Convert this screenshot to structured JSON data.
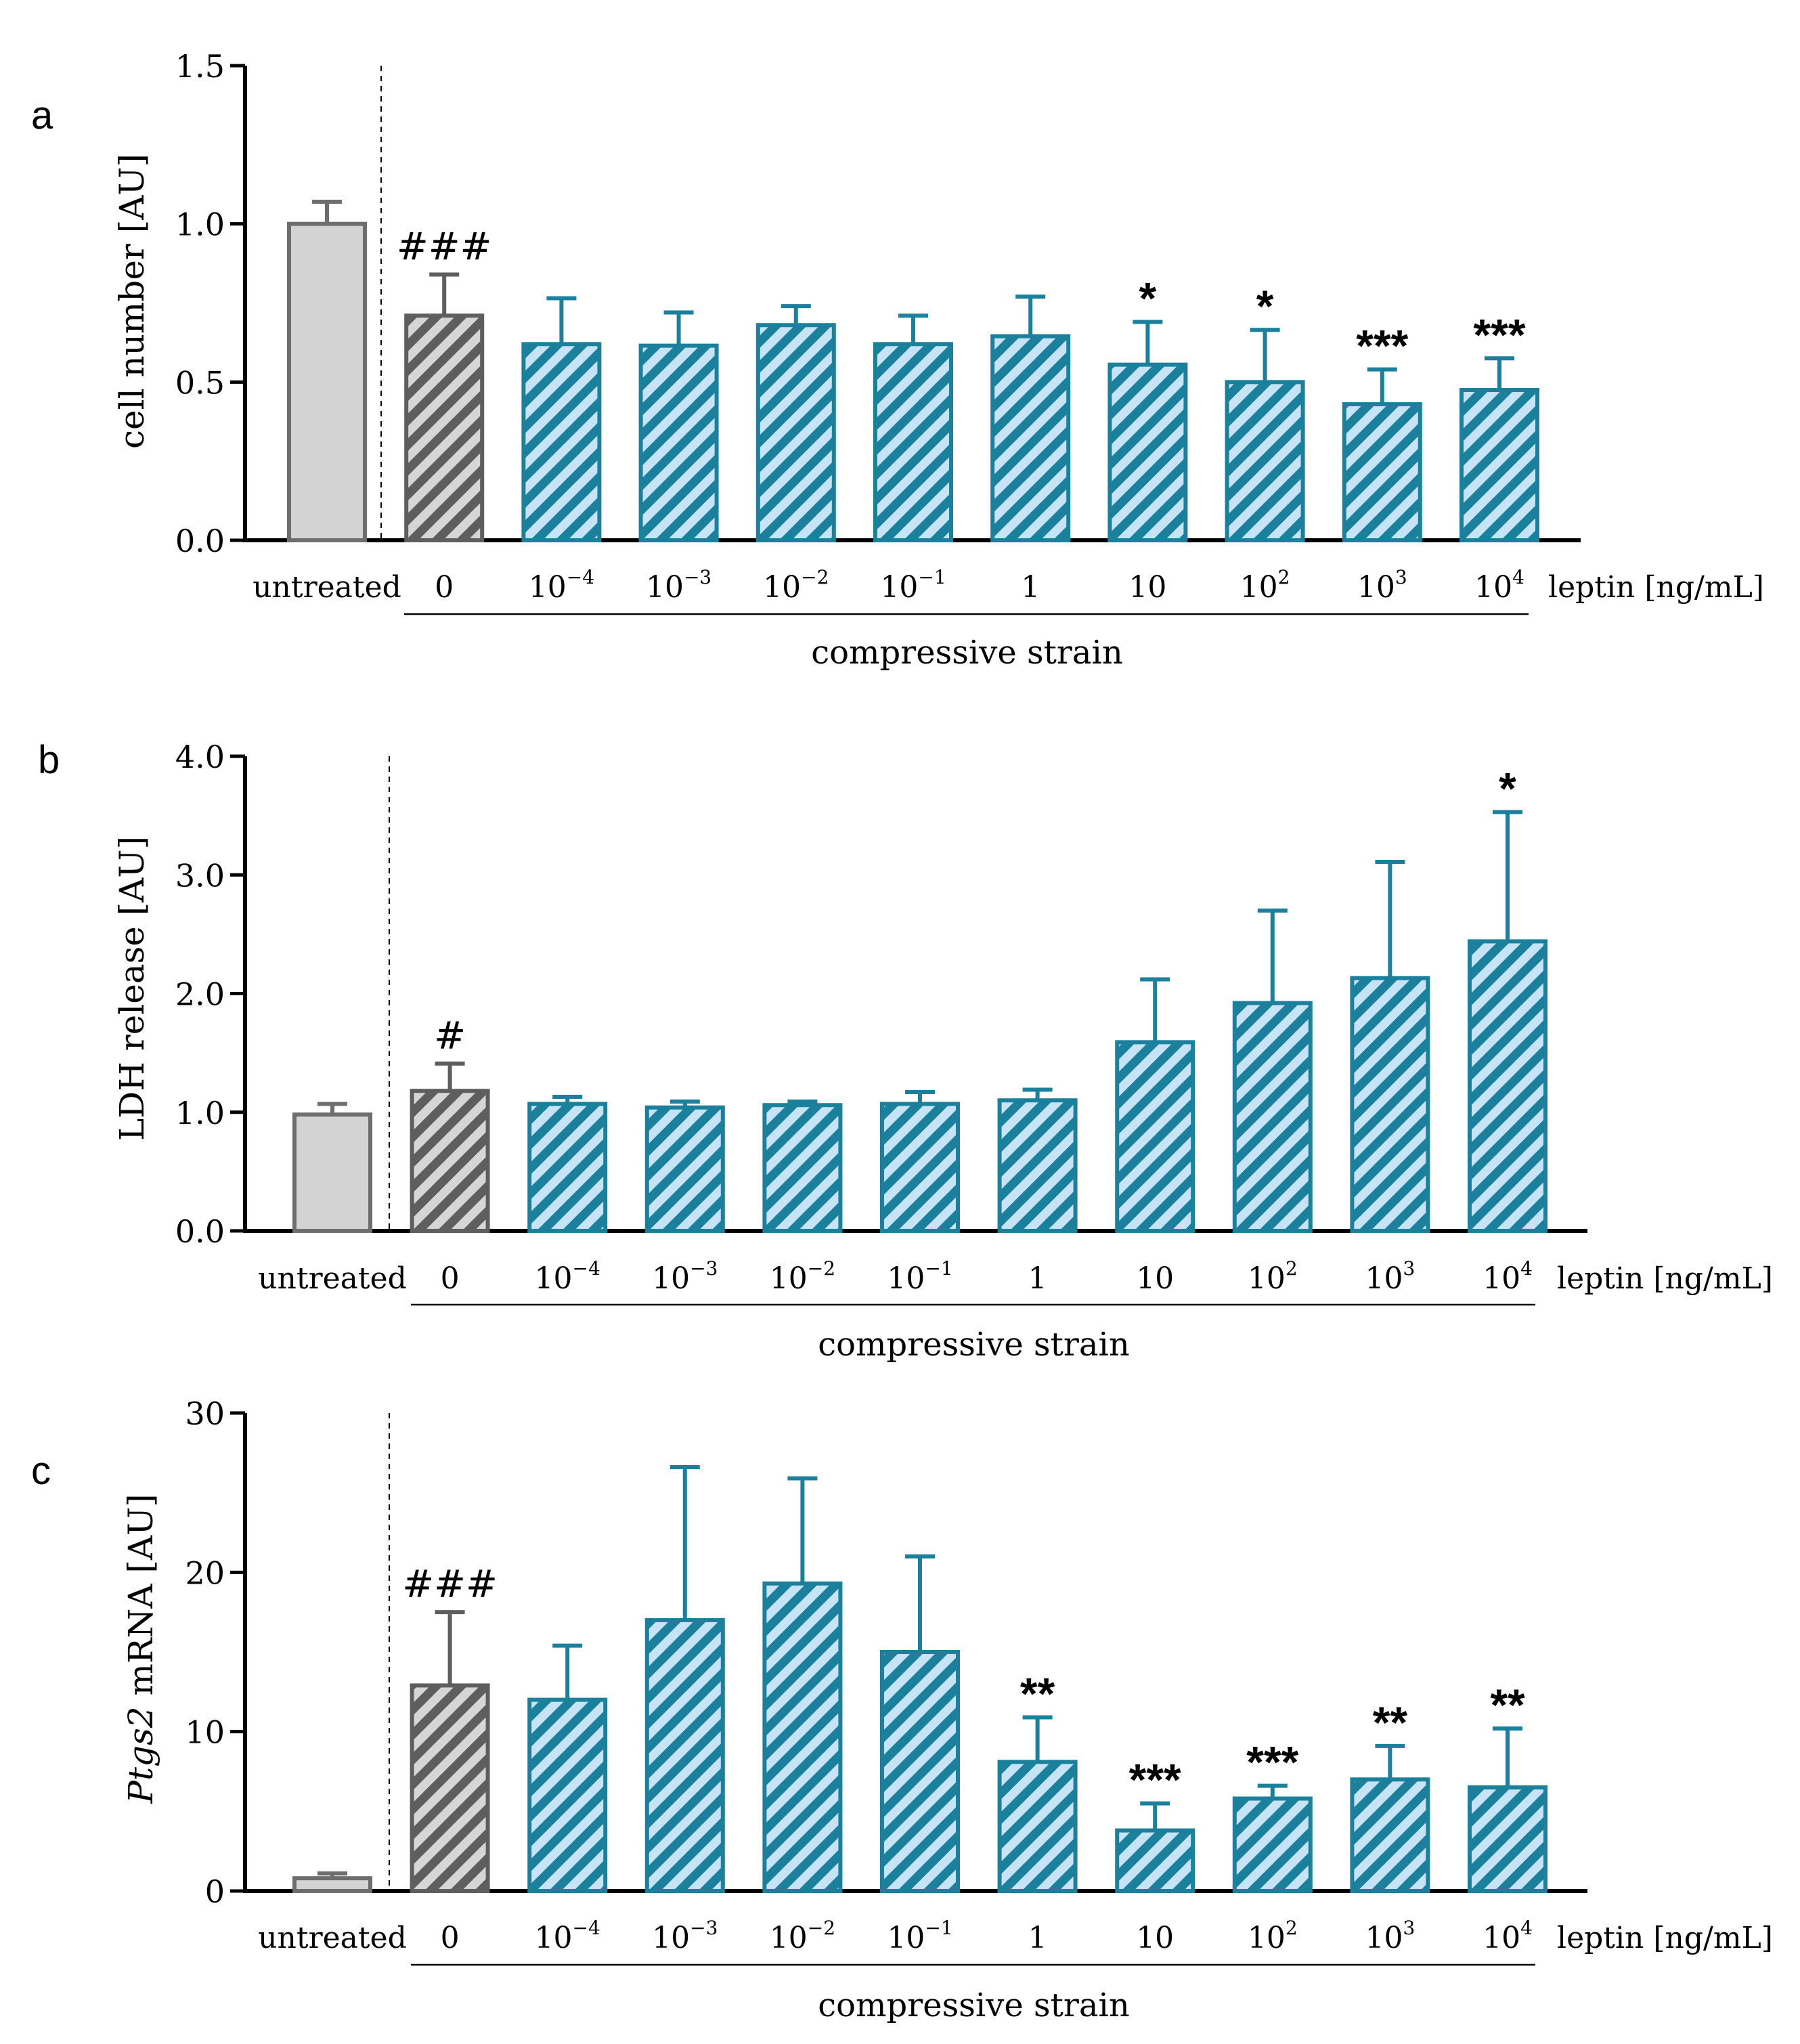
{
  "figure": {
    "x_categories": [
      "untreated",
      "0",
      "10^-4",
      "10^-3",
      "10^-2",
      "10^-1",
      "1",
      "10",
      "10^2",
      "10^3",
      "10^4"
    ],
    "x_category_labels": [
      {
        "base": "untreated",
        "exp": ""
      },
      {
        "base": "0",
        "exp": ""
      },
      {
        "base": "10",
        "exp": "−4"
      },
      {
        "base": "10",
        "exp": "−3"
      },
      {
        "base": "10",
        "exp": "−2"
      },
      {
        "base": "10",
        "exp": "−1"
      },
      {
        "base": "1",
        "exp": ""
      },
      {
        "base": "10",
        "exp": ""
      },
      {
        "base": "10",
        "exp": "2"
      },
      {
        "base": "10",
        "exp": "3"
      },
      {
        "base": "10",
        "exp": "4"
      }
    ],
    "leptin_label": "leptin [ng/mL]",
    "group_label": "compressive strain",
    "colors": {
      "untreated_fill": "#d3d3d3",
      "untreated_edge": "#6e6e6e",
      "control_edge": "#5e5e5e",
      "control_hatch_bg": "#d6d6d6",
      "leptin_edge": "#1a809c",
      "leptin_hatch_bg": "#c6e4f6",
      "axis": "#000000"
    }
  },
  "chart_data": [
    {
      "panel": "a",
      "type": "bar",
      "ylabel": "cell number [AU]",
      "ylim": [
        0,
        1.5
      ],
      "yticks": [
        "0.0",
        "0.5",
        "1.0",
        "1.5"
      ],
      "ytick_values": [
        0,
        0.5,
        1.0,
        1.5
      ],
      "values": [
        1.0,
        0.71,
        0.62,
        0.615,
        0.68,
        0.62,
        0.645,
        0.555,
        0.5,
        0.43,
        0.475
      ],
      "errors": [
        0.07,
        0.13,
        0.145,
        0.105,
        0.06,
        0.09,
        0.125,
        0.135,
        0.165,
        0.11,
        0.1
      ],
      "annotations": [
        "",
        "###",
        "",
        "",
        "",
        "",
        "",
        "*",
        "*",
        "***",
        "***"
      ]
    },
    {
      "panel": "b",
      "type": "bar",
      "ylabel": "LDH release [AU]",
      "ylim": [
        0,
        4.0
      ],
      "yticks": [
        "0.0",
        "1.0",
        "2.0",
        "3.0",
        "4.0"
      ],
      "ytick_values": [
        0,
        1.0,
        2.0,
        3.0,
        4.0
      ],
      "values": [
        0.98,
        1.18,
        1.07,
        1.04,
        1.06,
        1.07,
        1.1,
        1.59,
        1.92,
        2.13,
        2.44
      ],
      "errors": [
        0.09,
        0.23,
        0.06,
        0.05,
        0.03,
        0.1,
        0.09,
        0.53,
        0.78,
        0.98,
        1.09
      ],
      "annotations": [
        "",
        "#",
        "",
        "",
        "",
        "",
        "",
        "",
        "",
        "",
        "*"
      ]
    },
    {
      "panel": "c",
      "type": "bar",
      "ylabel_italic": "Ptgs2",
      "ylabel_rest": " mRNA [AU]",
      "ylim": [
        0,
        30
      ],
      "yticks": [
        "0",
        "10",
        "20",
        "30"
      ],
      "ytick_values": [
        0,
        10,
        20,
        30
      ],
      "values": [
        0.8,
        12.9,
        12.0,
        17.0,
        19.3,
        15.0,
        8.1,
        3.8,
        5.8,
        7.0,
        6.5
      ],
      "errors": [
        0.3,
        4.6,
        3.4,
        9.6,
        6.6,
        6.0,
        2.8,
        1.7,
        0.8,
        2.1,
        3.7
      ],
      "annotations": [
        "",
        "###",
        "",
        "",
        "",
        "",
        "**",
        "***",
        "***",
        "**",
        "**"
      ]
    }
  ]
}
